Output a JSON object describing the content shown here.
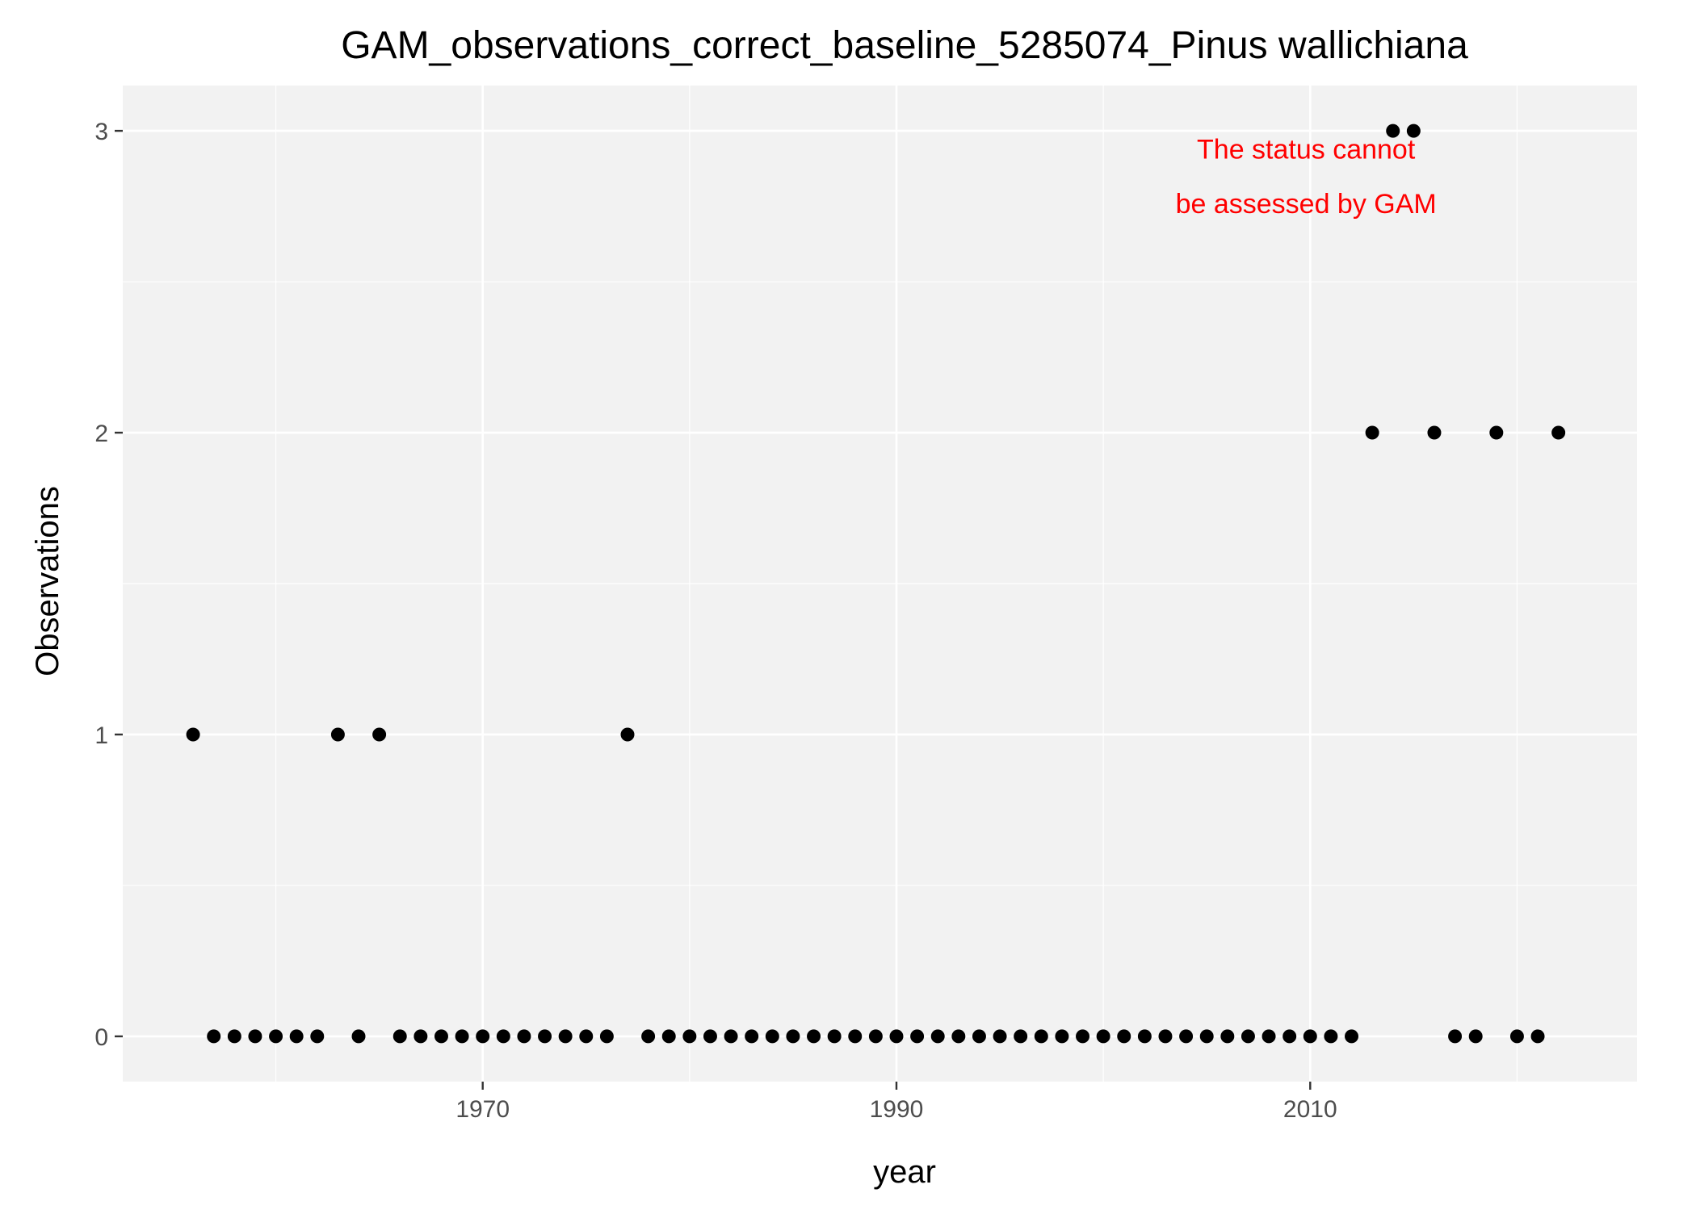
{
  "chart_data": {
    "type": "scatter",
    "title": "GAM_observations_correct_baseline_5285074_Pinus wallichiana",
    "xlabel": "year",
    "ylabel": "Observations",
    "xlim": [
      1952.6,
      2025.8
    ],
    "ylim": [
      -0.15,
      3.15
    ],
    "x_ticks": [
      1970,
      1990,
      2010
    ],
    "x_minor_ticks": [
      1960,
      1980,
      2000,
      2020
    ],
    "y_ticks": [
      0,
      1,
      2,
      3
    ],
    "y_minor_ticks": [
      0.5,
      1.5,
      2.5
    ],
    "grid": true,
    "annotation": {
      "lines": [
        "The status cannot",
        "be assessed by GAM"
      ],
      "color": "#ff0000",
      "x": 2009.8,
      "y": [
        2.94,
        2.76
      ]
    },
    "colors": {
      "panel": "#f2f2f2",
      "grid": "#ffffff",
      "point": "#000000",
      "text": "#000000",
      "tick_label": "#4d4d4d"
    },
    "series": [
      {
        "x": [
          1956,
          1957,
          1958,
          1959,
          1960,
          1961,
          1962,
          1963,
          1964,
          1965,
          1966,
          1967,
          1968,
          1969,
          1970,
          1971,
          1972,
          1973,
          1974,
          1975,
          1976,
          1977,
          1978,
          1979,
          1980,
          1981,
          1982,
          1983,
          1984,
          1985,
          1986,
          1987,
          1988,
          1989,
          1990,
          1991,
          1992,
          1993,
          1994,
          1995,
          1996,
          1997,
          1998,
          1999,
          2000,
          2001,
          2002,
          2003,
          2004,
          2005,
          2006,
          2007,
          2008,
          2009,
          2010,
          2011,
          2012,
          2013,
          2014,
          2015,
          2016,
          2017,
          2018,
          2019,
          2020,
          2021,
          2022
        ],
        "y": [
          1,
          0,
          0,
          0,
          0,
          0,
          0,
          1,
          0,
          1,
          0,
          0,
          0,
          0,
          0,
          0,
          0,
          0,
          0,
          0,
          0,
          1,
          0,
          0,
          0,
          0,
          0,
          0,
          0,
          0,
          0,
          0,
          0,
          0,
          0,
          0,
          0,
          0,
          0,
          0,
          0,
          0,
          0,
          0,
          0,
          0,
          0,
          0,
          0,
          0,
          0,
          0,
          0,
          0,
          0,
          0,
          0,
          2,
          3,
          3,
          2,
          0,
          0,
          2,
          0,
          0,
          2
        ]
      }
    ]
  }
}
